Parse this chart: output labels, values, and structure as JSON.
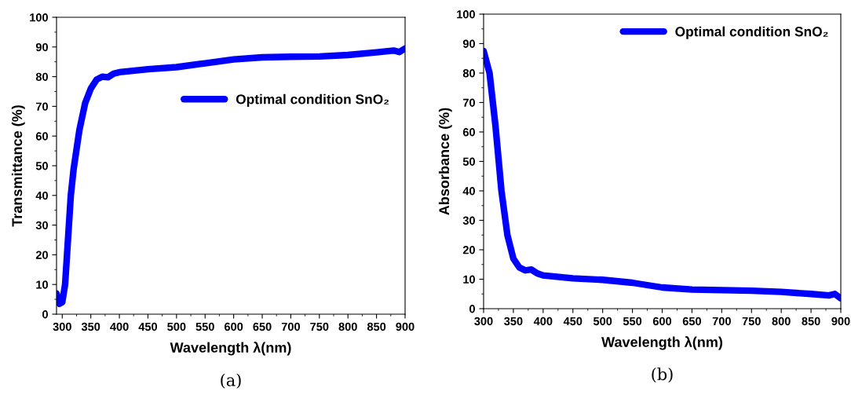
{
  "chart_data": [
    {
      "type": "line",
      "xlabel": "Wavelength λ(nm)",
      "ylabel": "Transmittance (%)",
      "annotations": [
        "(a)"
      ],
      "legend": "right",
      "grid": false,
      "line_style": "solid",
      "marker": "none",
      "xlim": [
        290,
        900
      ],
      "ylim": [
        0,
        100
      ],
      "xticks": [
        300,
        350,
        400,
        450,
        500,
        550,
        600,
        650,
        700,
        750,
        800,
        850,
        900
      ],
      "yticks": [
        0,
        10,
        20,
        30,
        40,
        50,
        60,
        70,
        80,
        90,
        100
      ],
      "series": [
        {
          "name": "Optimal condition SnO₂",
          "color": "#0000ff",
          "x": [
            290,
            295,
            300,
            305,
            310,
            315,
            320,
            330,
            340,
            350,
            360,
            370,
            380,
            390,
            400,
            450,
            500,
            550,
            600,
            650,
            700,
            750,
            800,
            850,
            880,
            890,
            900
          ],
          "values": [
            7,
            3.5,
            4,
            10,
            25,
            40,
            49,
            62,
            71,
            76,
            79,
            80,
            79.8,
            81,
            81.5,
            82.5,
            83.2,
            84.5,
            85.8,
            86.5,
            86.7,
            86.8,
            87.3,
            88.2,
            88.8,
            88.3,
            89.5
          ]
        }
      ]
    },
    {
      "type": "line",
      "xlabel": "Wavelength λ(nm)",
      "ylabel": "Absorbance (%)",
      "annotations": [
        "(b)"
      ],
      "legend": "top right",
      "grid": false,
      "line_style": "solid",
      "marker": "none",
      "xlim": [
        300,
        900
      ],
      "ylim": [
        0,
        100
      ],
      "xticks": [
        300,
        350,
        400,
        450,
        500,
        550,
        600,
        650,
        700,
        750,
        800,
        850,
        900
      ],
      "yticks": [
        0,
        10,
        20,
        30,
        40,
        50,
        60,
        70,
        80,
        90,
        100
      ],
      "series": [
        {
          "name": "Optimal condition SnO₂",
          "color": "#0000ff",
          "x": [
            300,
            310,
            320,
            330,
            340,
            350,
            360,
            370,
            380,
            390,
            400,
            450,
            500,
            550,
            600,
            650,
            700,
            750,
            800,
            850,
            880,
            890,
            900
          ],
          "values": [
            87.5,
            80,
            62,
            40,
            25,
            17,
            14,
            13,
            13.3,
            12,
            11.3,
            10.3,
            9.8,
            8.8,
            7.2,
            6.5,
            6.3,
            6.1,
            5.7,
            5,
            4.5,
            5,
            3.5
          ]
        }
      ]
    }
  ]
}
